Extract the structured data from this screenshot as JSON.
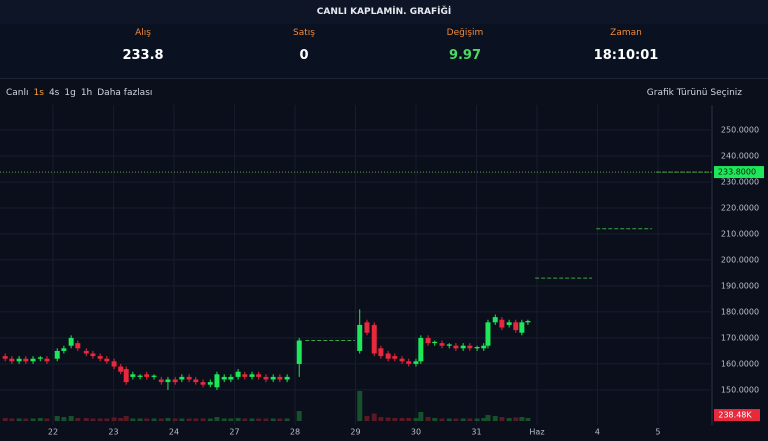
{
  "header": {
    "title": "CANLI KAPLAMİN. GRAFİĞİ",
    "stats": [
      {
        "label": "Alış",
        "value": "233.8"
      },
      {
        "label": "Satış",
        "value": "0"
      },
      {
        "label": "Değişim",
        "value": "9.97"
      },
      {
        "label": "Zaman",
        "value": "18:10:01"
      }
    ]
  },
  "toolbar": {
    "items": [
      "Canlı",
      "1s",
      "4s",
      "1g",
      "1h",
      "Daha fazlası"
    ],
    "active": 1,
    "chart_type": "Grafik Türünü Seçiniz"
  },
  "chart_data": {
    "type": "candlestick",
    "x": [
      -0.79,
      -0.68,
      -0.56,
      -0.45,
      -0.33,
      -0.21,
      -0.1,
      0.07,
      0.18,
      0.3,
      0.41,
      0.55,
      0.66,
      0.78,
      0.89,
      1.01,
      1.12,
      1.21,
      1.32,
      1.44,
      1.55,
      1.67,
      1.79,
      1.9,
      2.02,
      2.13,
      2.25,
      2.36,
      2.48,
      2.6,
      2.71,
      2.83,
      2.94,
      3.06,
      3.17,
      3.29,
      3.4,
      3.52,
      3.64,
      3.75,
      3.87,
      4.07,
      5.07,
      5.19,
      5.31,
      5.42,
      5.54,
      5.65,
      5.77,
      5.88,
      6.0,
      6.08,
      6.2,
      6.31,
      6.43,
      6.55,
      6.66,
      6.78,
      6.89,
      7.01,
      7.12,
      7.19,
      7.31,
      7.42,
      7.54,
      7.65,
      7.75,
      7.85
    ],
    "open": [
      163,
      162,
      161,
      162,
      161,
      162,
      162,
      162,
      165,
      167,
      168,
      165,
      164,
      163,
      162,
      161,
      159,
      158,
      155,
      155,
      156,
      155,
      154,
      153,
      154,
      154,
      155,
      154,
      153,
      152,
      151,
      154,
      154,
      155,
      156,
      155,
      156,
      155,
      154,
      155,
      154,
      160,
      165,
      176,
      175,
      166,
      164,
      163,
      162,
      161,
      160,
      161,
      170,
      168,
      168,
      167,
      167,
      166,
      167,
      166,
      166,
      167,
      176,
      177,
      175,
      176,
      172,
      176
    ],
    "high": [
      164,
      163,
      163,
      163,
      163,
      163,
      163,
      166,
      167,
      171,
      169,
      166,
      165,
      164,
      163,
      162,
      160,
      159,
      157,
      156,
      157,
      156,
      155,
      155,
      155,
      156,
      156,
      155,
      154,
      154,
      157,
      156,
      156,
      158,
      157,
      157,
      157,
      156,
      156,
      156,
      156,
      170,
      181,
      177,
      176,
      167,
      165,
      164,
      163,
      162,
      162,
      171,
      171,
      169,
      169,
      168,
      168,
      168,
      168,
      167,
      168,
      177,
      179,
      178,
      177,
      177,
      177,
      177
    ],
    "low": [
      161,
      160,
      160,
      160,
      160,
      161,
      160,
      161,
      164,
      166,
      165,
      163,
      162,
      161,
      160,
      158,
      156,
      152,
      154,
      154,
      154,
      154,
      152,
      150,
      152,
      153,
      153,
      152,
      151,
      151,
      150,
      153,
      153,
      154,
      154,
      154,
      154,
      153,
      153,
      153,
      153,
      155,
      164,
      171,
      163,
      162,
      161,
      161,
      160,
      159,
      159,
      160,
      167,
      167,
      166,
      166,
      165,
      165,
      165,
      165,
      165,
      166,
      175,
      173,
      174,
      172,
      171,
      175
    ],
    "close": [
      162,
      161,
      162,
      161,
      162,
      162.5,
      161,
      165,
      166,
      170,
      166,
      164,
      163,
      162,
      161,
      159,
      157,
      153,
      156,
      155.5,
      155,
      155.5,
      153,
      154,
      153,
      155,
      154,
      153,
      152,
      153,
      156,
      155,
      155,
      157,
      155,
      156,
      155,
      154,
      155,
      154,
      155,
      169,
      175,
      172,
      164,
      163,
      162,
      162,
      161,
      160,
      161,
      170,
      168,
      168.5,
      167,
      167.5,
      166,
      167,
      166,
      166.5,
      167,
      176,
      178,
      174,
      176,
      173,
      176,
      176.5
    ],
    "volume": [
      120000,
      100000,
      100000,
      100000,
      100000,
      120000,
      100000,
      200000,
      160000,
      200000,
      120000,
      120000,
      100000,
      100000,
      100000,
      140000,
      120000,
      200000,
      100000,
      100000,
      100000,
      100000,
      100000,
      120000,
      100000,
      100000,
      100000,
      100000,
      100000,
      100000,
      160000,
      100000,
      100000,
      120000,
      100000,
      100000,
      100000,
      100000,
      100000,
      100000,
      100000,
      400000,
      1200000,
      200000,
      300000,
      160000,
      140000,
      120000,
      120000,
      120000,
      120000,
      360000,
      160000,
      120000,
      100000,
      100000,
      100000,
      100000,
      100000,
      100000,
      120000,
      240000,
      200000,
      160000,
      120000,
      140000,
      160000,
      120000
    ],
    "levels": [
      {
        "x": [
          4.17,
          4.99
        ],
        "value": 169
      },
      {
        "x": [
          7.97,
          8.91
        ],
        "value": 193
      },
      {
        "x": [
          8.98,
          9.9
        ],
        "value": 212
      },
      {
        "x": [
          9.97,
          10.89
        ],
        "value": 233.8
      }
    ],
    "last_price": {
      "value": 233.8,
      "label": "233.8000"
    },
    "last_volume": {
      "value": 238480,
      "label": "238.48K"
    },
    "xlim": [
      -0.876,
      10.893
    ],
    "xticks": [
      {
        "value": 0,
        "label": "22"
      },
      {
        "value": 1,
        "label": "23"
      },
      {
        "value": 2,
        "label": "24"
      },
      {
        "value": 3,
        "label": "27"
      },
      {
        "value": 4,
        "label": "28"
      },
      {
        "value": 5,
        "label": "29"
      },
      {
        "value": 6,
        "label": "30"
      },
      {
        "value": 7,
        "label": "31"
      },
      {
        "value": 8,
        "label": "Haz"
      },
      {
        "value": 9,
        "label": "4"
      },
      {
        "value": 10,
        "label": "5"
      }
    ],
    "ylim": [
      136.5,
      259.6
    ],
    "yticks": [
      {
        "value": 150,
        "label": "150.0000"
      },
      {
        "value": 160,
        "label": "160.0000"
      },
      {
        "value": 170,
        "label": "170.0000"
      },
      {
        "value": 180,
        "label": "180.0000"
      },
      {
        "value": 190,
        "label": "190.0000"
      },
      {
        "value": 200,
        "label": "200.0000"
      },
      {
        "value": 210,
        "label": "210.0000"
      },
      {
        "value": 220,
        "label": "220.0000"
      },
      {
        "value": 230,
        "label": "230.0000"
      },
      {
        "value": 240,
        "label": "240.0000"
      },
      {
        "value": 250,
        "label": "250.0000"
      }
    ],
    "vlim": [
      0,
      4000000
    ],
    "up_color": "#1ee85a",
    "down_color": "#e8283c",
    "level_color": "#3fa34d",
    "grid": true
  }
}
